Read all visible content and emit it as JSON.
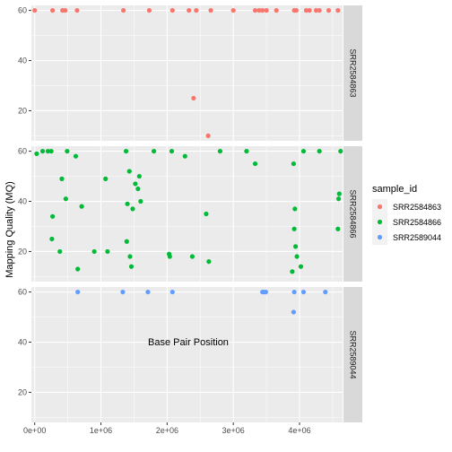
{
  "chart_data": {
    "type": "scatter",
    "facet_layout": "rows",
    "xlabel": "Base Pair Position",
    "ylabel": "Mapping Quality (MQ)",
    "xlim": [
      -50000,
      4650000
    ],
    "x_ticks": [
      0,
      1000000,
      2000000,
      3000000,
      4000000
    ],
    "x_tick_labels": [
      "0e+00",
      "1e+06",
      "2e+06",
      "3e+06",
      "4e+06"
    ],
    "ylim": [
      8,
      62
    ],
    "y_ticks": [
      20,
      40,
      60
    ],
    "y_tick_labels": [
      "20",
      "40",
      "60"
    ],
    "grid": true,
    "legend": {
      "title": "sample_id",
      "position": "right",
      "entries": [
        "SRR2584863",
        "SRR2584866",
        "SRR2589044"
      ]
    },
    "colors": {
      "SRR2584863": "#f8766d",
      "SRR2584866": "#00ba38",
      "SRR2589044": "#619cff",
      "panel_bg": "#ebebeb",
      "strip_bg": "#d9d9d9",
      "grid": "#ffffff"
    },
    "series": [
      {
        "name": "SRR2584863",
        "facet": "SRR2584863",
        "x": [
          0,
          270000,
          420000,
          460000,
          640000,
          1340000,
          1730000,
          2080000,
          2330000,
          2440000,
          2620000,
          2660000,
          3000000,
          3330000,
          3390000,
          3440000,
          3500000,
          3650000,
          3920000,
          3950000,
          4150000,
          4250000,
          4300000,
          4440000,
          4580000,
          2400000,
          4100000
        ],
        "y": [
          60,
          60,
          60,
          60,
          60,
          60,
          60,
          60,
          60,
          60,
          10,
          60,
          60,
          60,
          60,
          60,
          60,
          60,
          60,
          60,
          60,
          60,
          60,
          60,
          60,
          25,
          60
        ]
      },
      {
        "name": "SRR2584866",
        "facet": "SRR2584866",
        "x": [
          30000,
          120000,
          200000,
          250000,
          260000,
          270000,
          380000,
          410000,
          470000,
          490000,
          620000,
          650000,
          710000,
          900000,
          1070000,
          1100000,
          1380000,
          1390000,
          1400000,
          1430000,
          1440000,
          1460000,
          1480000,
          1520000,
          1560000,
          1580000,
          1600000,
          2030000,
          2040000,
          2070000,
          2270000,
          2380000,
          2590000,
          2630000,
          3330000,
          3890000,
          3910000,
          3920000,
          3930000,
          3940000,
          3960000,
          4020000,
          4060000,
          4580000,
          4590000,
          4600000,
          4620000,
          1800000,
          2800000,
          3200000,
          4300000
        ],
        "y": [
          59,
          60,
          60,
          60,
          25,
          34,
          20,
          49,
          41,
          60,
          58,
          13,
          38,
          20,
          49,
          20,
          60,
          24,
          39,
          52,
          18,
          14,
          37,
          47,
          45,
          50,
          40,
          19,
          18,
          60,
          58,
          18,
          35,
          16,
          55,
          12,
          55,
          29,
          37,
          22,
          18,
          14,
          60,
          29,
          41,
          43,
          60,
          60,
          60,
          60,
          60
        ]
      },
      {
        "name": "SRR2589044",
        "facet": "SRR2589044",
        "x": [
          650000,
          1330000,
          1710000,
          2080000,
          3440000,
          3460000,
          3490000,
          3910000,
          3920000,
          4060000,
          4390000
        ],
        "y": [
          60,
          60,
          60,
          60,
          60,
          60,
          60,
          52,
          60,
          60,
          60
        ]
      }
    ],
    "facets": [
      "SRR2584863",
      "SRR2584866",
      "SRR2589044"
    ]
  }
}
